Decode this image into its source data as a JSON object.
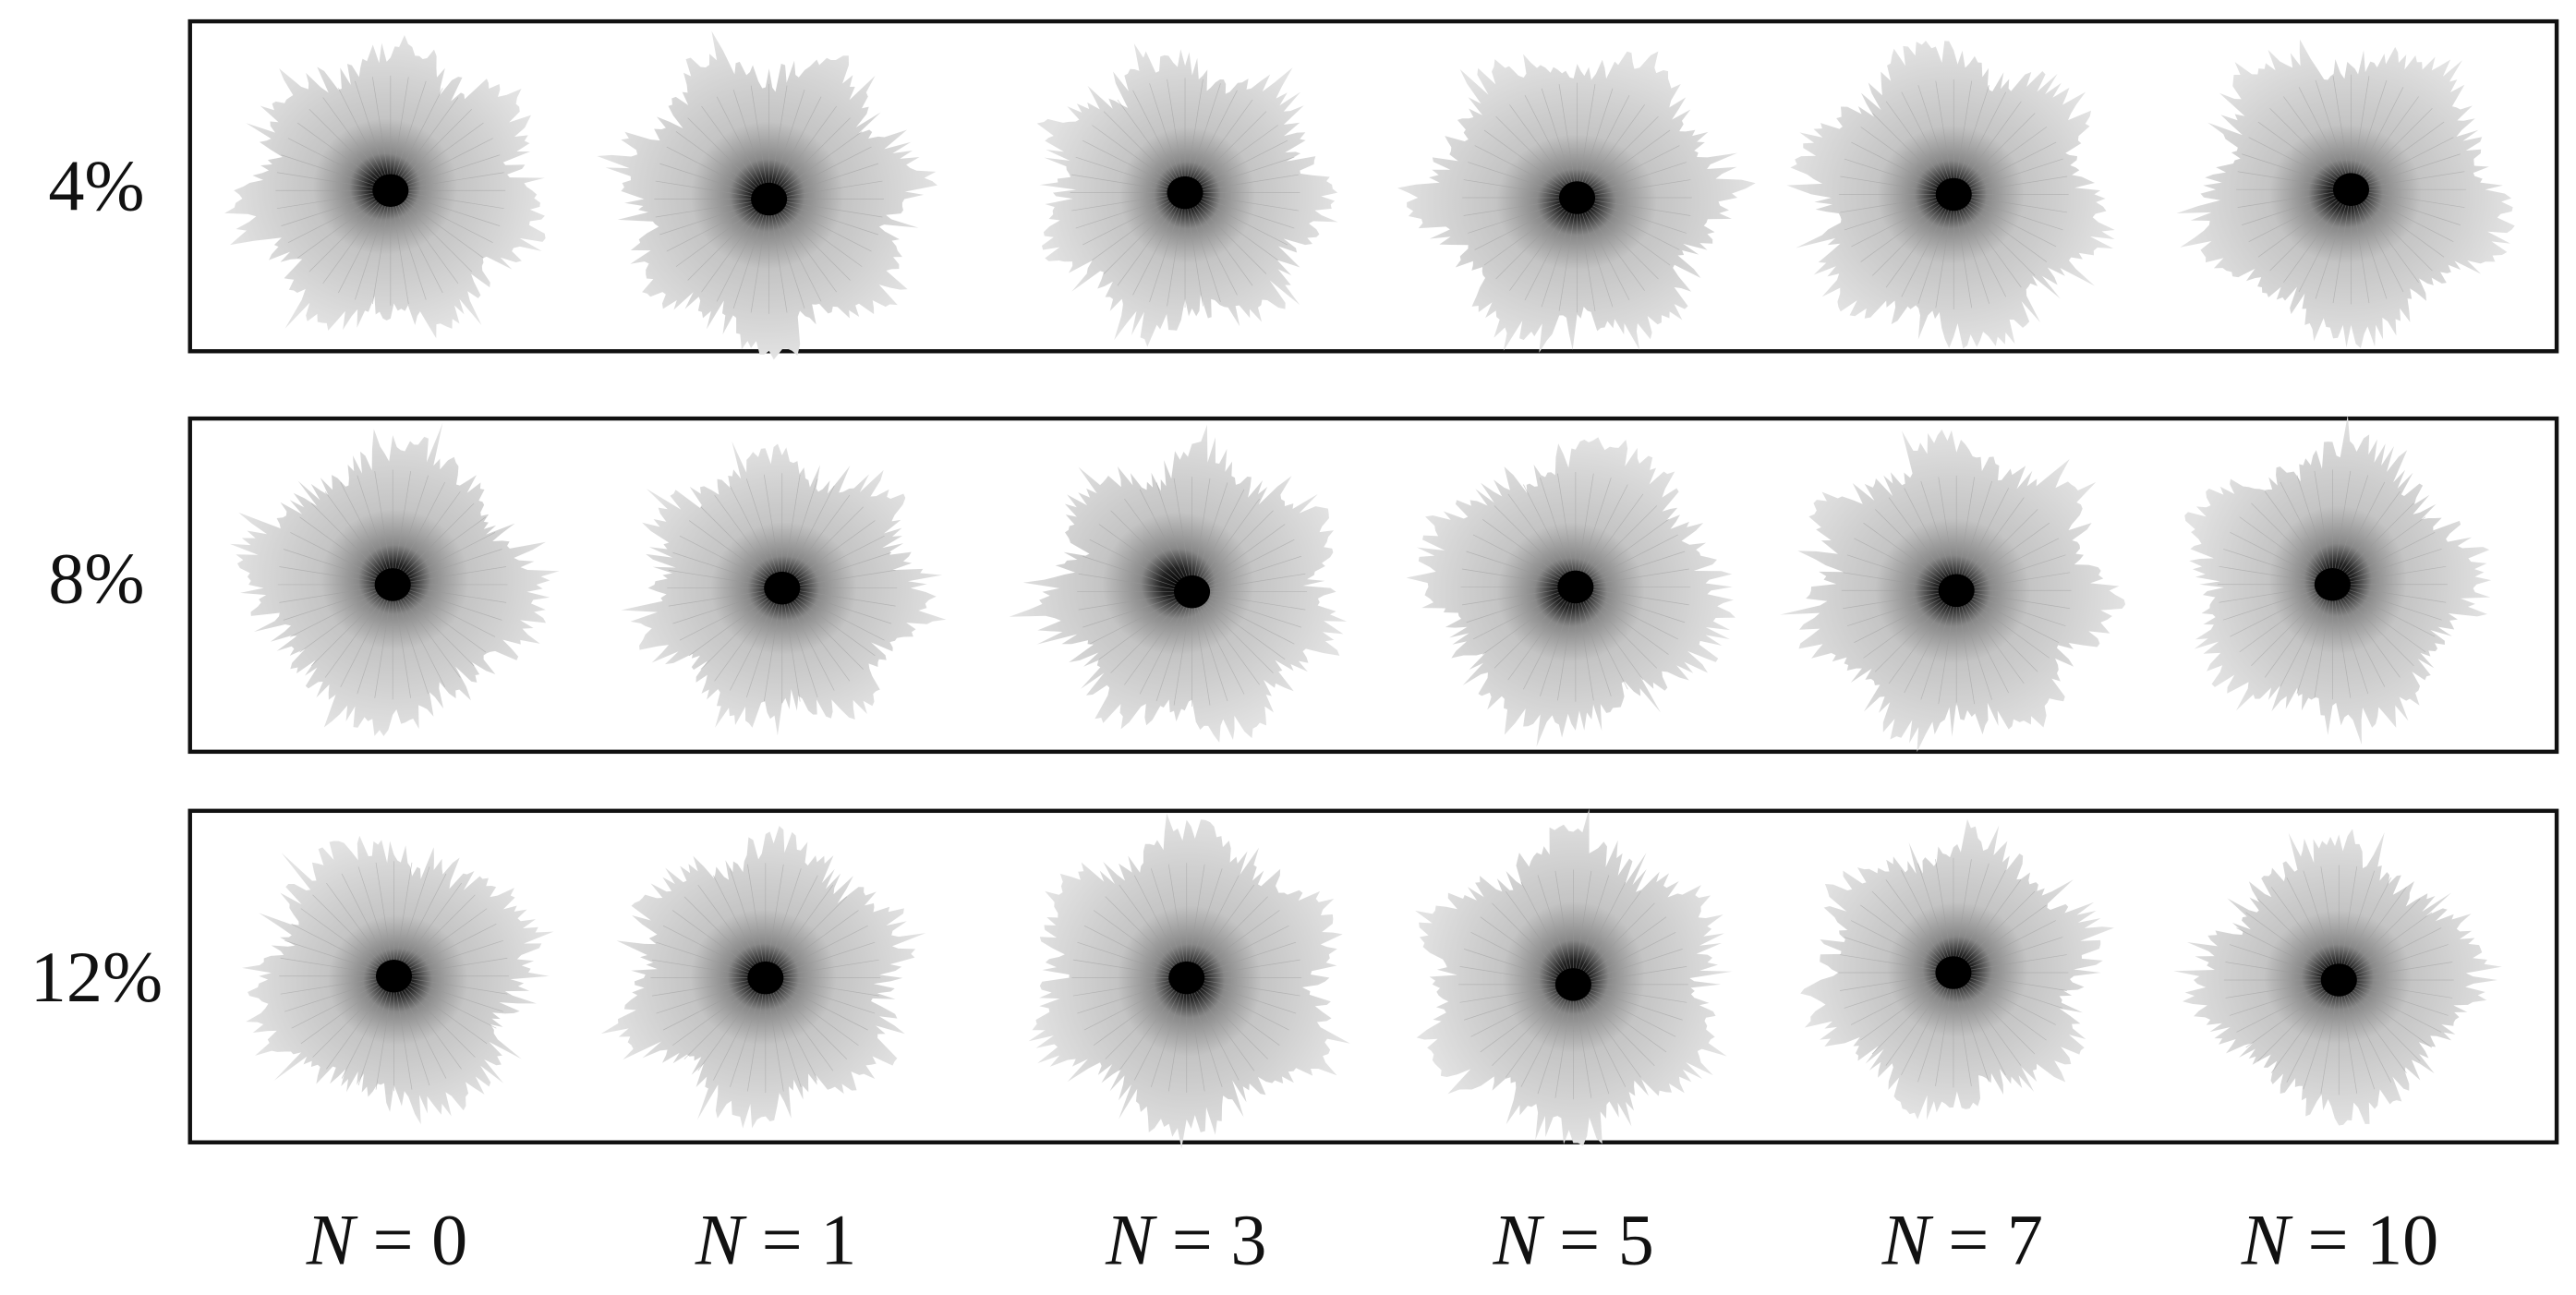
{
  "rows": [
    "4%",
    "8%",
    "12%"
  ],
  "columns": [
    "N = 0",
    "N = 1",
    "N = 3",
    "N = 5",
    "N = 7",
    "N = 10"
  ]
}
